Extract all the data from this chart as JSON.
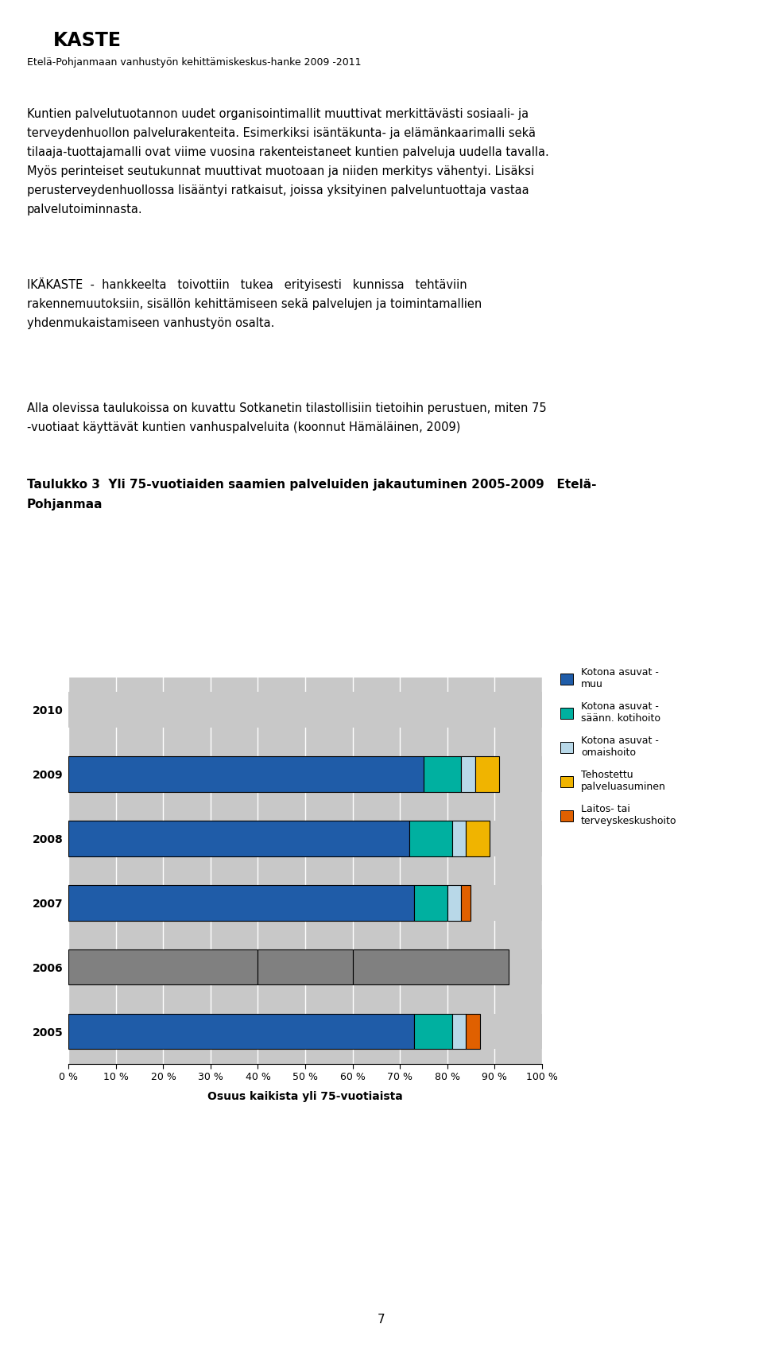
{
  "years": [
    "2010",
    "2009",
    "2008",
    "2007",
    "2006",
    "2005"
  ],
  "series": {
    "blue": [
      0.0,
      75.0,
      72.0,
      73.0,
      0.0,
      73.0
    ],
    "teal": [
      0.0,
      8.0,
      9.0,
      7.0,
      0.0,
      8.0
    ],
    "lightblue": [
      0.0,
      3.0,
      3.0,
      3.0,
      0.0,
      3.0
    ],
    "yellow": [
      0.0,
      5.0,
      5.0,
      0.0,
      0.0,
      0.0
    ],
    "orange": [
      0.0,
      0.0,
      0.0,
      2.0,
      0.0,
      3.0
    ]
  },
  "gray_segments_2006": [
    40.0,
    20.0,
    33.0
  ],
  "colors": {
    "blue": "#1F5CA8",
    "teal": "#00B0A0",
    "lightblue": "#B8D8E8",
    "yellow": "#F0B400",
    "orange": "#E06000",
    "gray": "#C0C0C0",
    "darkgray": "#808080",
    "bar_bg": "#C8C8C8"
  },
  "legend_labels": [
    "Kotona asuvat -\nmuu",
    "Kotona asuvat -\nsäänn. kotihoito",
    "Kotona asuvat -\nomaishoito",
    "Tehostettu\npalveluasuminen",
    "Laitos- tai\nterveyskeskushoito"
  ],
  "xlabel": "Osuus kaikista yli 75-vuotiaista",
  "xlim": [
    0,
    100
  ],
  "xtick_labels": [
    "0 %",
    "10 %",
    "20 %",
    "30 %",
    "40 %",
    "50 %",
    "60 %",
    "70 %",
    "80 %",
    "90 %",
    "100 %"
  ],
  "background_color": "#FFFFFF",
  "header_subtitle": "Etelä-Pohjanmaan vanhustyön kehittämiskeskus-hanke 2009 -2011",
  "body_text1": "Kuntien palvelutuotannon uudet organisointimallit muuttivat merkittävästi sosiaali- ja\nterveydenhuollon palvelurakenteita. Esimerkiksi isäntäkunta- ja elämänkaarimalli sekä\ntilaaja-tuottajamalli ovat viime vuosina rakenteistaneet kuntien palveluja uudella tavalla.\nMyös perinteiset seutukunnat muuttivat muotoaan ja niiden merkitys vähentyi. Lisäksi\nperusterveydenhuollossa lisääntyi ratkaisut, joissa yksityinen palveluntuottaja vastaa\npalvelutoiminnasta.",
  "body_text2": "IKÄKASTE  -  hankkeelta   toivottiin   tukea   erityisesti   kunnissa   tehtäviin\nrakennemuutoksiin, sisällön kehittämiseen sekä palvelujen ja toimintamallien\nyhdenmukaistamiseen vanhustyön osalta.",
  "body_text3": "Alla olevissa taulukoissa on kuvattu Sotkanetin tilastollisiin tietoihin perustuen, miten 75\n-vuotiaat käyttävät kuntien vanhuspalveluita (koonnut Hämäläinen, 2009)",
  "table_title_line1": "Taulukko 3  Yli 75-vuotiaiden saamien palveluiden jakautuminen 2005-2009   Etelä-",
  "table_title_line2": "Pohjanmaa",
  "page_number": "7"
}
